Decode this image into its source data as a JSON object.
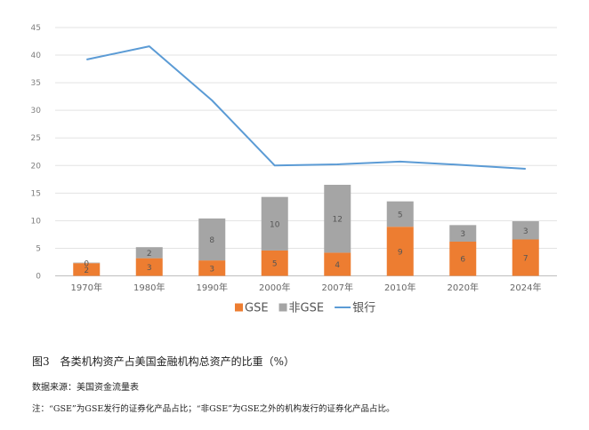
{
  "chart_data": {
    "type": "bar",
    "stacked": true,
    "categories": [
      "1970年",
      "1980年",
      "1990年",
      "2000年",
      "2007年",
      "2010年",
      "2020年",
      "2024年"
    ],
    "series": [
      {
        "name": "GSE",
        "type": "bar",
        "color": "#ed7d31",
        "values": [
          2,
          3,
          3,
          5,
          4,
          9,
          6,
          7
        ],
        "plotted": [
          2.3,
          3.2,
          2.8,
          4.6,
          4.2,
          8.9,
          6.2,
          6.6
        ]
      },
      {
        "name": "非GSE",
        "type": "bar",
        "color": "#a5a5a5",
        "values": [
          0,
          2,
          8,
          10,
          12,
          5,
          3,
          3
        ],
        "plotted": [
          0.1,
          2.0,
          7.6,
          9.7,
          12.3,
          4.6,
          3.0,
          3.3
        ]
      },
      {
        "name": "银行",
        "type": "line",
        "color": "#5b9bd5",
        "values": [
          39.2,
          41.6,
          31.8,
          20.0,
          20.2,
          20.7,
          20.1,
          19.4
        ]
      }
    ],
    "ylim": [
      0,
      45
    ],
    "yticks": [
      0,
      5,
      10,
      15,
      20,
      25,
      30,
      35,
      40,
      45
    ],
    "grid": true,
    "legend": "bottom"
  },
  "figure": {
    "title": "图3　各类机构资产占美国金融机构总资产的比重（%）",
    "source": "数据来源：美国资金流量表",
    "note": "注：“GSE”为GSE发行的证券化产品占比；“非GSE”为GSE之外的机构发行的证券化产品占比。"
  }
}
